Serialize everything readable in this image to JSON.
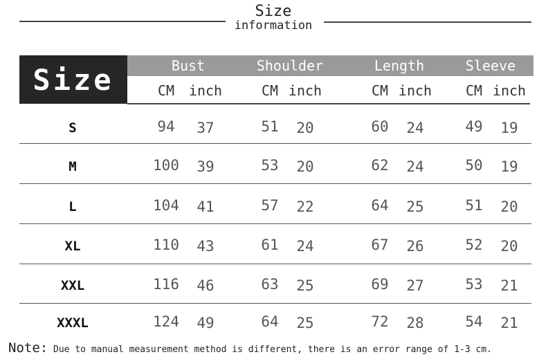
{
  "title": {
    "main": "Size",
    "sub": "information"
  },
  "table": {
    "size_header": "Size",
    "columns": [
      {
        "label": "Bust",
        "units": [
          "CM",
          "inch"
        ]
      },
      {
        "label": "Shoulder",
        "units": [
          "CM",
          "inch"
        ]
      },
      {
        "label": "Length",
        "units": [
          "CM",
          "inch"
        ]
      },
      {
        "label": "Sleeve",
        "units": [
          "CM",
          "inch"
        ]
      }
    ],
    "rows": [
      {
        "size": "S",
        "values": [
          "94",
          "37",
          "51",
          "20",
          "60",
          "24",
          "49",
          "19"
        ]
      },
      {
        "size": "M",
        "values": [
          "100",
          "39",
          "53",
          "20",
          "62",
          "24",
          "50",
          "19"
        ]
      },
      {
        "size": "L",
        "values": [
          "104",
          "41",
          "57",
          "22",
          "64",
          "25",
          "51",
          "20"
        ]
      },
      {
        "size": "XL",
        "values": [
          "110",
          "43",
          "61",
          "24",
          "67",
          "26",
          "52",
          "20"
        ]
      },
      {
        "size": "XXL",
        "values": [
          "116",
          "46",
          "63",
          "25",
          "69",
          "27",
          "53",
          "21"
        ]
      },
      {
        "size": "XXXL",
        "values": [
          "124",
          "49",
          "64",
          "25",
          "72",
          "28",
          "54",
          "21"
        ]
      }
    ]
  },
  "note": {
    "label": "Note:",
    "text": " Due to manual measurement method is different, there is an error range of 1-3 cm."
  },
  "colors": {
    "header_dark": "#262626",
    "header_band": "#9a9a9a"
  }
}
